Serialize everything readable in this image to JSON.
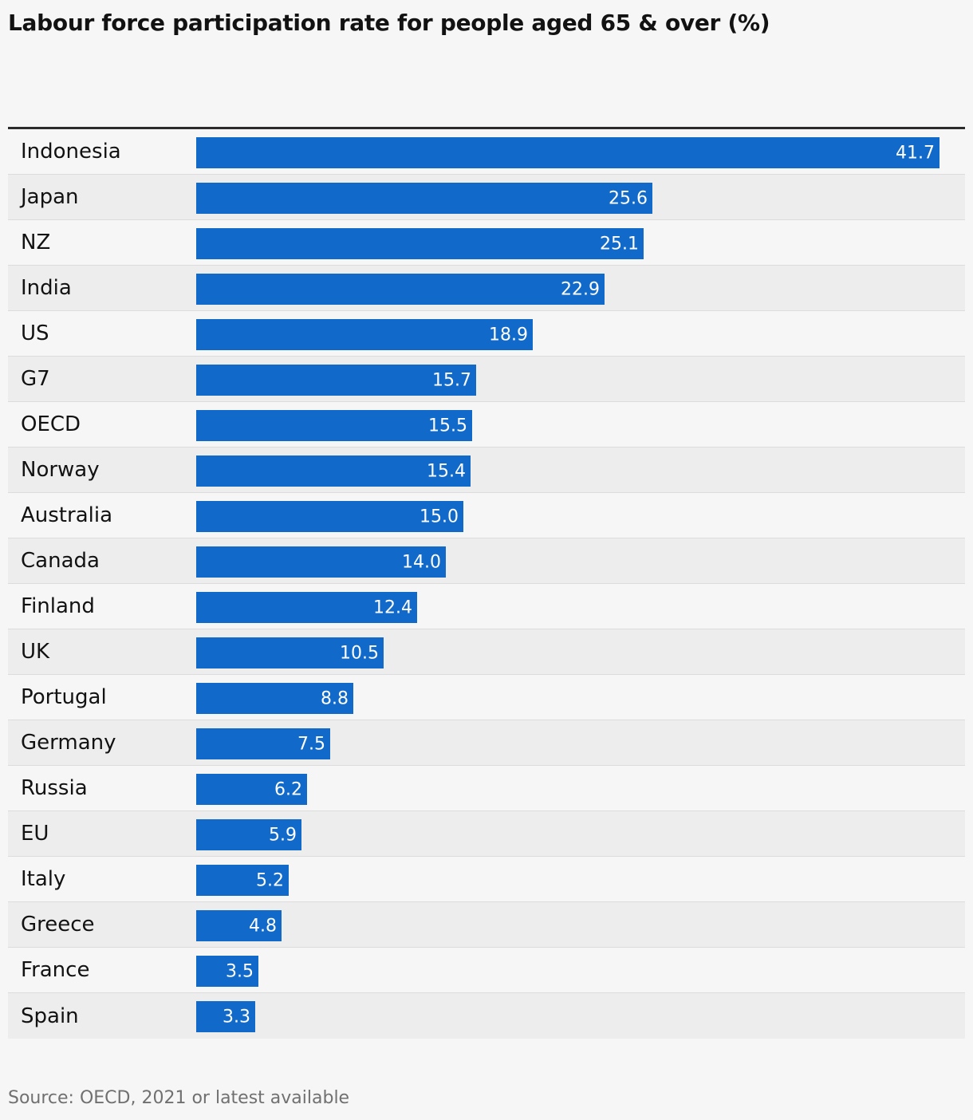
{
  "chart_data": {
    "type": "bar",
    "orientation": "horizontal",
    "title": "Labour force participation rate for people aged 65 & over (%)",
    "categories": [
      "Indonesia",
      "Japan",
      "NZ",
      "India",
      "US",
      "G7",
      "OECD",
      "Norway",
      "Australia",
      "Canada",
      "Finland",
      "UK",
      "Portugal",
      "Germany",
      "Russia",
      "EU",
      "Italy",
      "Greece",
      "France",
      "Spain"
    ],
    "values": [
      41.7,
      25.6,
      25.1,
      22.9,
      18.9,
      15.7,
      15.5,
      15.4,
      15.0,
      14.0,
      12.4,
      10.5,
      8.8,
      7.5,
      6.2,
      5.9,
      5.2,
      4.8,
      3.5,
      3.3
    ],
    "value_labels": [
      "41.7",
      "25.6",
      "25.1",
      "22.9",
      "18.9",
      "15.7",
      "15.5",
      "15.4",
      "15.0",
      "14.0",
      "12.4",
      "10.5",
      "8.8",
      "7.5",
      "6.2",
      "5.9",
      "5.2",
      "4.8",
      "3.5",
      "3.3"
    ],
    "xlim": [
      0,
      41.7
    ],
    "bar_color": "#116ac9",
    "source": "Source: OECD, 2021 or latest available"
  }
}
